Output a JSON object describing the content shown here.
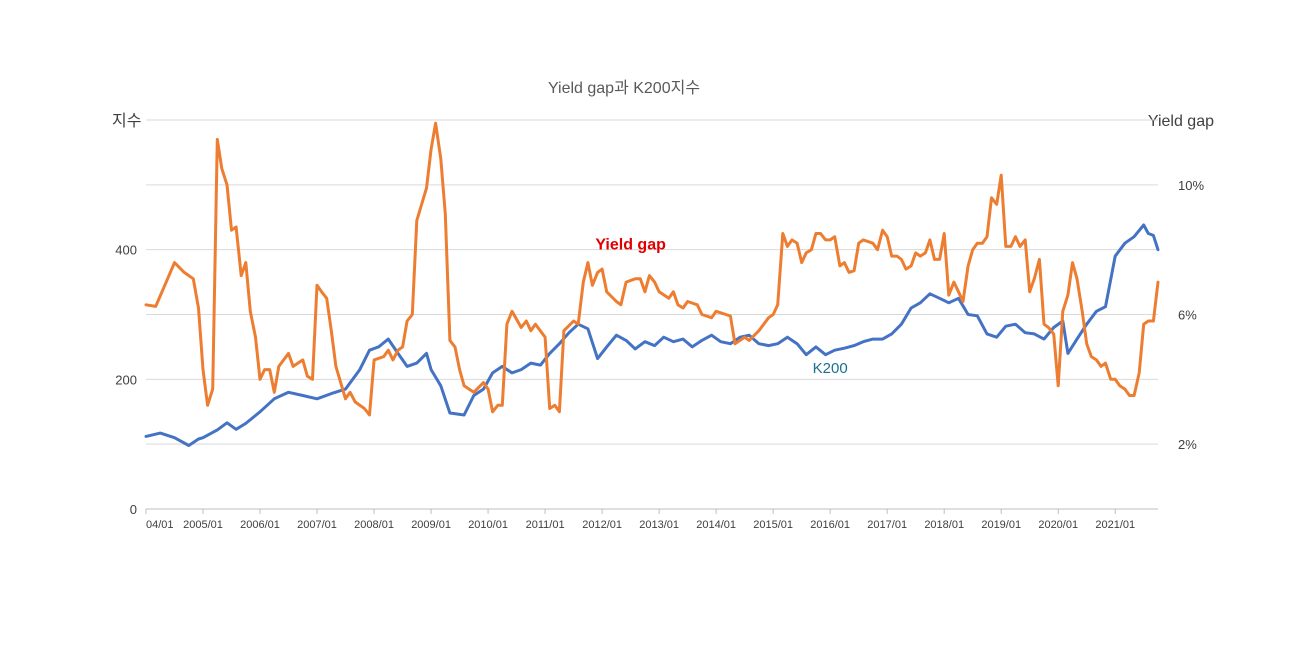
{
  "chart_data": {
    "type": "line",
    "title": "Yield gap과 K200지수",
    "ylabel_left": "지수",
    "ylabel_right": "Yield gap",
    "left_axis": {
      "range": [
        0,
        600
      ],
      "ticks": [
        "0",
        "200",
        "400"
      ],
      "tick_values": [
        0,
        200,
        400
      ]
    },
    "right_axis": {
      "range": [
        0,
        12
      ],
      "ticks": [
        "2%",
        "6%",
        "10%"
      ],
      "tick_values": [
        2,
        6,
        10
      ]
    },
    "gridlines": [
      0,
      100,
      200,
      300,
      400,
      500,
      600
    ],
    "x_labels": [
      "04/01",
      "2005/01",
      "2006/01",
      "2007/01",
      "2008/01",
      "2009/01",
      "2010/01",
      "2011/01",
      "2012/01",
      "2013/01",
      "2014/01",
      "2015/01",
      "2016/01",
      "2017/01",
      "2018/01",
      "2019/01",
      "2020/01",
      "2021/01"
    ],
    "x_range": [
      2004.0,
      2021.75
    ],
    "annotations": [
      {
        "text": "Yield gap",
        "series": "yield_gap",
        "x": 2012.5,
        "y": 8.0,
        "color": "#e00000"
      },
      {
        "text": "K200",
        "series": "k200",
        "x": 2016.0,
        "y": 210,
        "color": "#1b6f8f"
      }
    ],
    "series": [
      {
        "key": "k200",
        "name": "K200",
        "axis": "left",
        "color": "#4472c4",
        "points": [
          [
            2004.0,
            112
          ],
          [
            2004.25,
            117
          ],
          [
            2004.5,
            110
          ],
          [
            2004.75,
            98
          ],
          [
            2004.92,
            108
          ],
          [
            2005.0,
            110
          ],
          [
            2005.25,
            122
          ],
          [
            2005.42,
            133
          ],
          [
            2005.58,
            123
          ],
          [
            2005.75,
            132
          ],
          [
            2006.0,
            150
          ],
          [
            2006.25,
            170
          ],
          [
            2006.5,
            180
          ],
          [
            2006.75,
            175
          ],
          [
            2007.0,
            170
          ],
          [
            2007.25,
            178
          ],
          [
            2007.5,
            185
          ],
          [
            2007.75,
            215
          ],
          [
            2007.92,
            245
          ],
          [
            2008.08,
            250
          ],
          [
            2008.25,
            262
          ],
          [
            2008.42,
            240
          ],
          [
            2008.58,
            220
          ],
          [
            2008.75,
            225
          ],
          [
            2008.92,
            240
          ],
          [
            2009.0,
            215
          ],
          [
            2009.17,
            190
          ],
          [
            2009.33,
            148
          ],
          [
            2009.58,
            145
          ],
          [
            2009.75,
            175
          ],
          [
            2009.92,
            185
          ],
          [
            2010.08,
            210
          ],
          [
            2010.25,
            220
          ],
          [
            2010.42,
            210
          ],
          [
            2010.58,
            215
          ],
          [
            2010.75,
            225
          ],
          [
            2010.92,
            222
          ],
          [
            2011.08,
            240
          ],
          [
            2011.25,
            255
          ],
          [
            2011.42,
            272
          ],
          [
            2011.58,
            285
          ],
          [
            2011.75,
            278
          ],
          [
            2011.92,
            232
          ],
          [
            2012.08,
            250
          ],
          [
            2012.25,
            268
          ],
          [
            2012.42,
            260
          ],
          [
            2012.58,
            247
          ],
          [
            2012.75,
            258
          ],
          [
            2012.92,
            252
          ],
          [
            2013.08,
            265
          ],
          [
            2013.25,
            258
          ],
          [
            2013.42,
            262
          ],
          [
            2013.58,
            250
          ],
          [
            2013.75,
            260
          ],
          [
            2013.92,
            268
          ],
          [
            2014.08,
            258
          ],
          [
            2014.25,
            255
          ],
          [
            2014.42,
            265
          ],
          [
            2014.58,
            268
          ],
          [
            2014.75,
            255
          ],
          [
            2014.92,
            252
          ],
          [
            2015.08,
            255
          ],
          [
            2015.25,
            265
          ],
          [
            2015.42,
            255
          ],
          [
            2015.58,
            238
          ],
          [
            2015.75,
            250
          ],
          [
            2015.92,
            238
          ],
          [
            2016.08,
            245
          ],
          [
            2016.25,
            248
          ],
          [
            2016.42,
            252
          ],
          [
            2016.58,
            258
          ],
          [
            2016.75,
            262
          ],
          [
            2016.92,
            262
          ],
          [
            2017.08,
            270
          ],
          [
            2017.25,
            285
          ],
          [
            2017.42,
            310
          ],
          [
            2017.58,
            318
          ],
          [
            2017.75,
            332
          ],
          [
            2017.92,
            325
          ],
          [
            2018.08,
            318
          ],
          [
            2018.25,
            325
          ],
          [
            2018.42,
            300
          ],
          [
            2018.58,
            298
          ],
          [
            2018.75,
            270
          ],
          [
            2018.92,
            265
          ],
          [
            2019.08,
            282
          ],
          [
            2019.25,
            285
          ],
          [
            2019.42,
            272
          ],
          [
            2019.58,
            270
          ],
          [
            2019.75,
            262
          ],
          [
            2019.92,
            280
          ],
          [
            2020.08,
            290
          ],
          [
            2020.17,
            240
          ],
          [
            2020.33,
            262
          ],
          [
            2020.5,
            285
          ],
          [
            2020.67,
            305
          ],
          [
            2020.83,
            312
          ],
          [
            2021.0,
            390
          ],
          [
            2021.17,
            410
          ],
          [
            2021.33,
            420
          ],
          [
            2021.5,
            438
          ],
          [
            2021.58,
            425
          ],
          [
            2021.67,
            422
          ],
          [
            2021.75,
            400
          ]
        ]
      },
      {
        "key": "yield_gap",
        "name": "Yield gap",
        "axis": "right",
        "color": "#ed7d31",
        "points": [
          [
            2004.0,
            6.3
          ],
          [
            2004.17,
            6.25
          ],
          [
            2004.33,
            6.9
          ],
          [
            2004.5,
            7.6
          ],
          [
            2004.67,
            7.3
          ],
          [
            2004.83,
            7.1
          ],
          [
            2004.92,
            6.2
          ],
          [
            2005.0,
            4.3
          ],
          [
            2005.08,
            3.2
          ],
          [
            2005.17,
            3.7
          ],
          [
            2005.25,
            11.4
          ],
          [
            2005.33,
            10.5
          ],
          [
            2005.42,
            10.0
          ],
          [
            2005.5,
            8.6
          ],
          [
            2005.58,
            8.7
          ],
          [
            2005.67,
            7.2
          ],
          [
            2005.75,
            7.6
          ],
          [
            2005.83,
            6.1
          ],
          [
            2005.92,
            5.3
          ],
          [
            2006.0,
            4.0
          ],
          [
            2006.08,
            4.3
          ],
          [
            2006.17,
            4.3
          ],
          [
            2006.25,
            3.6
          ],
          [
            2006.33,
            4.4
          ],
          [
            2006.5,
            4.8
          ],
          [
            2006.58,
            4.4
          ],
          [
            2006.75,
            4.6
          ],
          [
            2006.83,
            4.1
          ],
          [
            2006.92,
            4.0
          ],
          [
            2007.0,
            6.9
          ],
          [
            2007.08,
            6.7
          ],
          [
            2007.17,
            6.5
          ],
          [
            2007.25,
            5.5
          ],
          [
            2007.33,
            4.4
          ],
          [
            2007.5,
            3.4
          ],
          [
            2007.58,
            3.6
          ],
          [
            2007.67,
            3.3
          ],
          [
            2007.83,
            3.1
          ],
          [
            2007.92,
            2.9
          ],
          [
            2008.0,
            4.6
          ],
          [
            2008.17,
            4.7
          ],
          [
            2008.25,
            4.9
          ],
          [
            2008.33,
            4.6
          ],
          [
            2008.42,
            4.9
          ],
          [
            2008.5,
            5.0
          ],
          [
            2008.58,
            5.8
          ],
          [
            2008.67,
            6.0
          ],
          [
            2008.75,
            8.9
          ],
          [
            2008.92,
            9.9
          ],
          [
            2009.0,
            11.1
          ],
          [
            2009.08,
            11.9
          ],
          [
            2009.17,
            10.8
          ],
          [
            2009.25,
            9.1
          ],
          [
            2009.33,
            5.2
          ],
          [
            2009.42,
            5.0
          ],
          [
            2009.5,
            4.3
          ],
          [
            2009.58,
            3.8
          ],
          [
            2009.75,
            3.6
          ],
          [
            2009.92,
            3.9
          ],
          [
            2010.0,
            3.7
          ],
          [
            2010.08,
            3.0
          ],
          [
            2010.17,
            3.2
          ],
          [
            2010.25,
            3.2
          ],
          [
            2010.33,
            5.7
          ],
          [
            2010.42,
            6.1
          ],
          [
            2010.58,
            5.6
          ],
          [
            2010.67,
            5.8
          ],
          [
            2010.75,
            5.5
          ],
          [
            2010.83,
            5.7
          ],
          [
            2011.0,
            5.3
          ],
          [
            2011.08,
            3.1
          ],
          [
            2011.17,
            3.2
          ],
          [
            2011.25,
            3.0
          ],
          [
            2011.33,
            5.5
          ],
          [
            2011.5,
            5.8
          ],
          [
            2011.58,
            5.7
          ],
          [
            2011.67,
            7.0
          ],
          [
            2011.75,
            7.6
          ],
          [
            2011.83,
            6.9
          ],
          [
            2011.92,
            7.3
          ],
          [
            2012.0,
            7.4
          ],
          [
            2012.08,
            6.7
          ],
          [
            2012.25,
            6.4
          ],
          [
            2012.33,
            6.3
          ],
          [
            2012.42,
            7.0
          ],
          [
            2012.58,
            7.1
          ],
          [
            2012.67,
            7.1
          ],
          [
            2012.75,
            6.7
          ],
          [
            2012.83,
            7.2
          ],
          [
            2012.92,
            7.0
          ],
          [
            2013.0,
            6.7
          ],
          [
            2013.17,
            6.5
          ],
          [
            2013.25,
            6.7
          ],
          [
            2013.33,
            6.3
          ],
          [
            2013.42,
            6.2
          ],
          [
            2013.5,
            6.4
          ],
          [
            2013.67,
            6.3
          ],
          [
            2013.75,
            6.0
          ],
          [
            2013.92,
            5.9
          ],
          [
            2014.0,
            6.1
          ],
          [
            2014.17,
            6.0
          ],
          [
            2014.25,
            5.95
          ],
          [
            2014.33,
            5.1
          ],
          [
            2014.5,
            5.3
          ],
          [
            2014.58,
            5.2
          ],
          [
            2014.75,
            5.5
          ],
          [
            2014.92,
            5.9
          ],
          [
            2015.0,
            6.0
          ],
          [
            2015.08,
            6.3
          ],
          [
            2015.17,
            8.5
          ],
          [
            2015.25,
            8.1
          ],
          [
            2015.33,
            8.3
          ],
          [
            2015.42,
            8.2
          ],
          [
            2015.5,
            7.6
          ],
          [
            2015.58,
            7.9
          ],
          [
            2015.67,
            8.0
          ],
          [
            2015.75,
            8.5
          ],
          [
            2015.83,
            8.5
          ],
          [
            2015.92,
            8.3
          ],
          [
            2016.0,
            8.3
          ],
          [
            2016.08,
            8.4
          ],
          [
            2016.17,
            7.5
          ],
          [
            2016.25,
            7.6
          ],
          [
            2016.33,
            7.3
          ],
          [
            2016.42,
            7.35
          ],
          [
            2016.5,
            8.2
          ],
          [
            2016.58,
            8.3
          ],
          [
            2016.75,
            8.2
          ],
          [
            2016.83,
            8.0
          ],
          [
            2016.92,
            8.6
          ],
          [
            2017.0,
            8.4
          ],
          [
            2017.08,
            7.8
          ],
          [
            2017.17,
            7.8
          ],
          [
            2017.25,
            7.7
          ],
          [
            2017.33,
            7.4
          ],
          [
            2017.42,
            7.5
          ],
          [
            2017.5,
            7.9
          ],
          [
            2017.58,
            7.8
          ],
          [
            2017.67,
            7.9
          ],
          [
            2017.75,
            8.3
          ],
          [
            2017.83,
            7.7
          ],
          [
            2017.92,
            7.7
          ],
          [
            2018.0,
            8.5
          ],
          [
            2018.08,
            6.6
          ],
          [
            2018.17,
            7.0
          ],
          [
            2018.25,
            6.7
          ],
          [
            2018.33,
            6.4
          ],
          [
            2018.42,
            7.5
          ],
          [
            2018.5,
            8.0
          ],
          [
            2018.58,
            8.2
          ],
          [
            2018.67,
            8.2
          ],
          [
            2018.75,
            8.4
          ],
          [
            2018.83,
            9.6
          ],
          [
            2018.92,
            9.4
          ],
          [
            2019.0,
            10.3
          ],
          [
            2019.08,
            8.1
          ],
          [
            2019.17,
            8.1
          ],
          [
            2019.25,
            8.4
          ],
          [
            2019.33,
            8.1
          ],
          [
            2019.42,
            8.3
          ],
          [
            2019.5,
            6.7
          ],
          [
            2019.58,
            7.1
          ],
          [
            2019.67,
            7.7
          ],
          [
            2019.75,
            5.7
          ],
          [
            2019.83,
            5.6
          ],
          [
            2019.92,
            5.4
          ],
          [
            2020.0,
            3.8
          ],
          [
            2020.08,
            6.1
          ],
          [
            2020.17,
            6.6
          ],
          [
            2020.25,
            7.6
          ],
          [
            2020.33,
            7.1
          ],
          [
            2020.42,
            6.1
          ],
          [
            2020.5,
            5.1
          ],
          [
            2020.58,
            4.7
          ],
          [
            2020.67,
            4.6
          ],
          [
            2020.75,
            4.4
          ],
          [
            2020.83,
            4.5
          ],
          [
            2020.92,
            4.0
          ],
          [
            2021.0,
            4.0
          ],
          [
            2021.08,
            3.8
          ],
          [
            2021.17,
            3.7
          ],
          [
            2021.25,
            3.5
          ],
          [
            2021.33,
            3.5
          ],
          [
            2021.42,
            4.2
          ],
          [
            2021.5,
            5.7
          ],
          [
            2021.58,
            5.8
          ],
          [
            2021.67,
            5.8
          ],
          [
            2021.75,
            7.0
          ]
        ]
      }
    ]
  }
}
